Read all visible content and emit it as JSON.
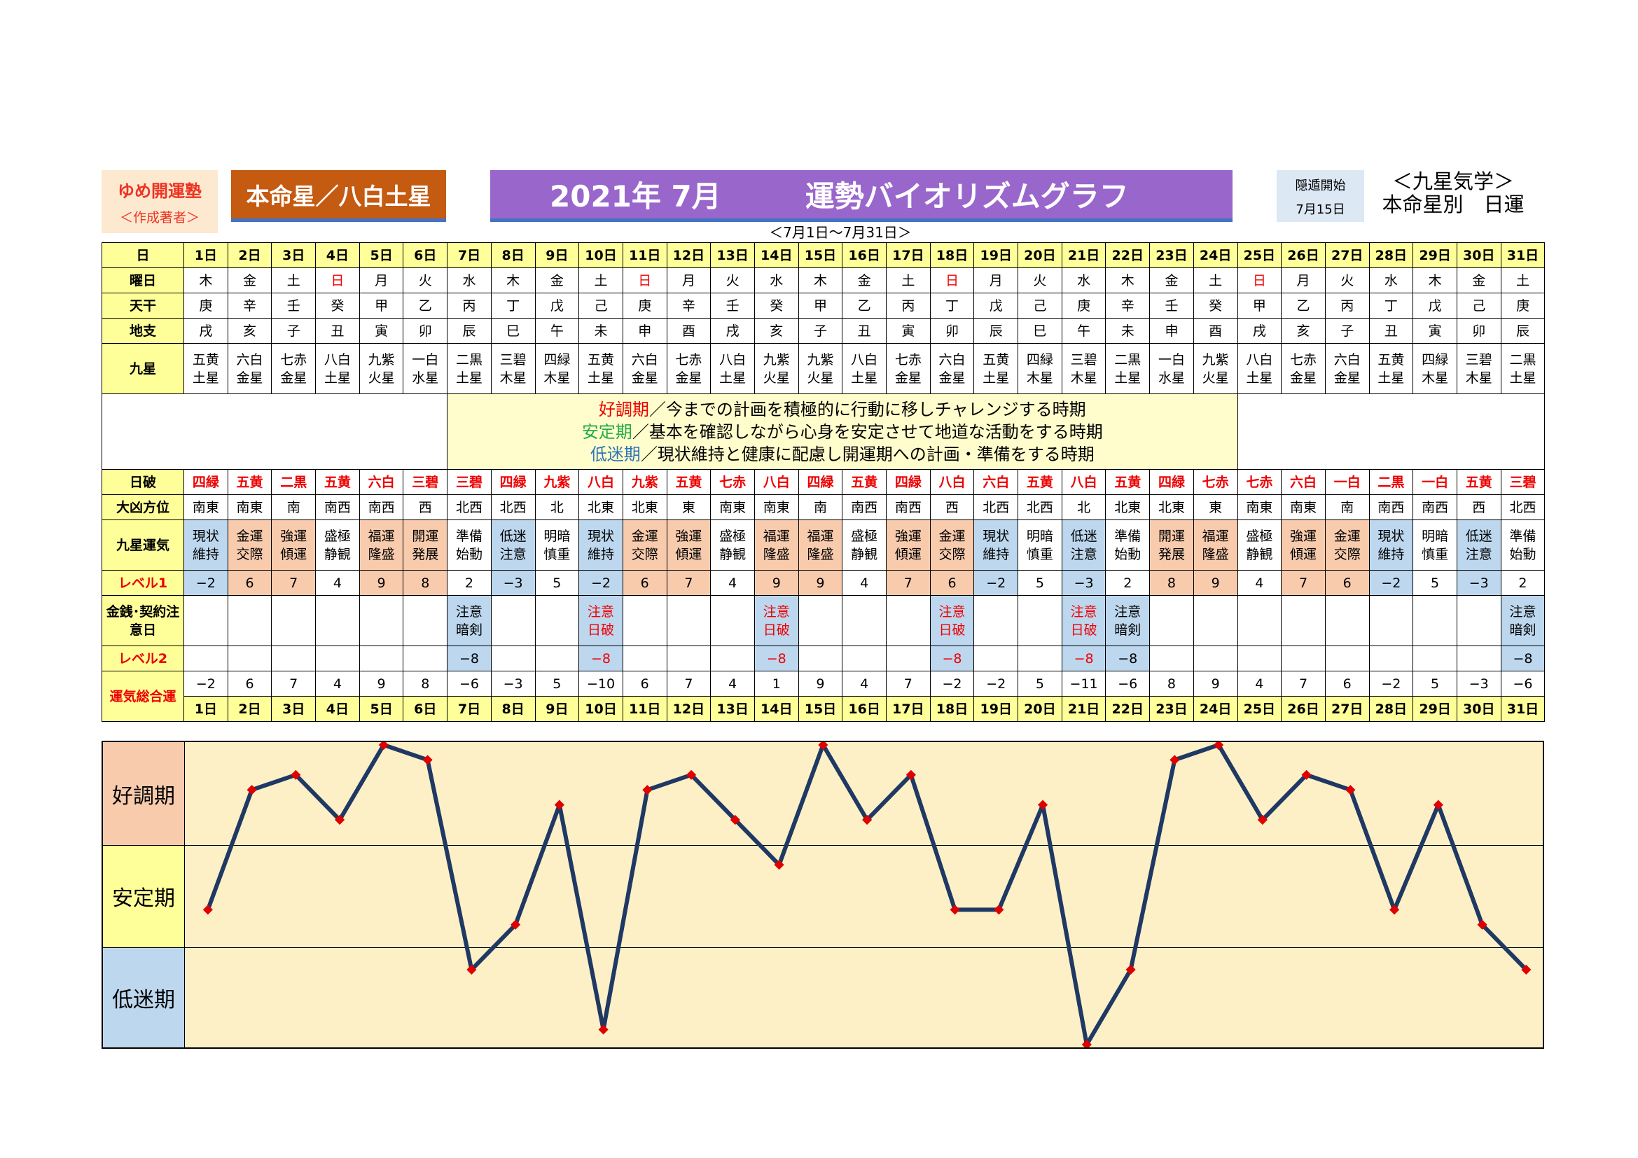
{
  "header": {
    "school": "ゆめ開運塾",
    "author": "＜作成著者＞",
    "honmei": "本命星／八白土星",
    "year_month": "2021年 7月",
    "graph_title": "運勢バイオリズムグラフ",
    "range": "＜7月1日～7月31日＞",
    "hidden_label": "隠遁開始",
    "hidden_date": "7月15日",
    "kyusei_title": "＜九星気学＞",
    "kyusei_sub": "本命星別　日運"
  },
  "row_labels": {
    "day": "日",
    "weekday": "曜日",
    "tenkan": "天干",
    "chishi": "地支",
    "kyusei": "九星",
    "nippa": "日破",
    "daikyo": "大凶方位",
    "unki": "九星運気",
    "level1": "レベル1",
    "kinsen": "金銭･契約注意日",
    "level2": "レベル2",
    "sogo": "運気総合運"
  },
  "legend": [
    {
      "head": "好調期",
      "text": "／今までの計画を積極的に行動に移しチャレンジする時期"
    },
    {
      "head": "安定期",
      "text": "／基本を確認しながら心身を安定させて地道な活動をする時期"
    },
    {
      "head": "低迷期",
      "text": "／現状維持と健康に配慮し開運期への計画・準備をする時期"
    }
  ],
  "days": [
    "1日",
    "2日",
    "3日",
    "4日",
    "5日",
    "6日",
    "7日",
    "8日",
    "9日",
    "10日",
    "11日",
    "12日",
    "13日",
    "14日",
    "15日",
    "16日",
    "17日",
    "18日",
    "19日",
    "20日",
    "21日",
    "22日",
    "23日",
    "24日",
    "25日",
    "26日",
    "27日",
    "28日",
    "29日",
    "30日",
    "31日"
  ],
  "weekdays": [
    "木",
    "金",
    "土",
    "日",
    "月",
    "火",
    "水",
    "木",
    "金",
    "土",
    "日",
    "月",
    "火",
    "水",
    "木",
    "金",
    "土",
    "日",
    "月",
    "火",
    "水",
    "木",
    "金",
    "土",
    "日",
    "月",
    "火",
    "水",
    "木",
    "金",
    "土"
  ],
  "tenkan": [
    "庚",
    "辛",
    "壬",
    "癸",
    "甲",
    "乙",
    "丙",
    "丁",
    "戊",
    "己",
    "庚",
    "辛",
    "壬",
    "癸",
    "甲",
    "乙",
    "丙",
    "丁",
    "戊",
    "己",
    "庚",
    "辛",
    "壬",
    "癸",
    "甲",
    "乙",
    "丙",
    "丁",
    "戊",
    "己",
    "庚"
  ],
  "chishi": [
    "戌",
    "亥",
    "子",
    "丑",
    "寅",
    "卯",
    "辰",
    "巳",
    "午",
    "未",
    "申",
    "酉",
    "戌",
    "亥",
    "子",
    "丑",
    "寅",
    "卯",
    "辰",
    "巳",
    "午",
    "未",
    "申",
    "酉",
    "戌",
    "亥",
    "子",
    "丑",
    "寅",
    "卯",
    "辰"
  ],
  "kyusei": [
    [
      "五黄",
      "土星"
    ],
    [
      "六白",
      "金星"
    ],
    [
      "七赤",
      "金星"
    ],
    [
      "八白",
      "土星"
    ],
    [
      "九紫",
      "火星"
    ],
    [
      "一白",
      "水星"
    ],
    [
      "二黒",
      "土星"
    ],
    [
      "三碧",
      "木星"
    ],
    [
      "四緑",
      "木星"
    ],
    [
      "五黄",
      "土星"
    ],
    [
      "六白",
      "金星"
    ],
    [
      "七赤",
      "金星"
    ],
    [
      "八白",
      "土星"
    ],
    [
      "九紫",
      "火星"
    ],
    [
      "九紫",
      "火星"
    ],
    [
      "八白",
      "土星"
    ],
    [
      "七赤",
      "金星"
    ],
    [
      "六白",
      "金星"
    ],
    [
      "五黄",
      "土星"
    ],
    [
      "四緑",
      "木星"
    ],
    [
      "三碧",
      "木星"
    ],
    [
      "二黒",
      "土星"
    ],
    [
      "一白",
      "水星"
    ],
    [
      "九紫",
      "火星"
    ],
    [
      "八白",
      "土星"
    ],
    [
      "七赤",
      "金星"
    ],
    [
      "六白",
      "金星"
    ],
    [
      "五黄",
      "土星"
    ],
    [
      "四緑",
      "木星"
    ],
    [
      "三碧",
      "木星"
    ],
    [
      "二黒",
      "土星"
    ]
  ],
  "nippa": [
    "四緑",
    "五黄",
    "二黒",
    "五黄",
    "六白",
    "三碧",
    "三碧",
    "四緑",
    "九紫",
    "八白",
    "九紫",
    "五黄",
    "七赤",
    "八白",
    "四緑",
    "五黄",
    "四緑",
    "八白",
    "六白",
    "五黄",
    "八白",
    "五黄",
    "四緑",
    "七赤",
    "七赤",
    "六白",
    "一白",
    "二黒",
    "一白",
    "五黄",
    "三碧"
  ],
  "daikyo": [
    "南東",
    "南東",
    "南",
    "南西",
    "南西",
    "西",
    "北西",
    "北西",
    "北",
    "北東",
    "北東",
    "東",
    "南東",
    "南東",
    "南",
    "南西",
    "南西",
    "西",
    "北西",
    "北西",
    "北",
    "北東",
    "北東",
    "東",
    "南東",
    "南東",
    "南",
    "南西",
    "南西",
    "西",
    "北西"
  ],
  "unki": [
    [
      "現状",
      "維持"
    ],
    [
      "金運",
      "交際"
    ],
    [
      "強運",
      "傾運"
    ],
    [
      "盛極",
      "静観"
    ],
    [
      "福運",
      "隆盛"
    ],
    [
      "開運",
      "発展"
    ],
    [
      "準備",
      "始動"
    ],
    [
      "低迷",
      "注意"
    ],
    [
      "明暗",
      "慎重"
    ],
    [
      "現状",
      "維持"
    ],
    [
      "金運",
      "交際"
    ],
    [
      "強運",
      "傾運"
    ],
    [
      "盛極",
      "静観"
    ],
    [
      "福運",
      "隆盛"
    ],
    [
      "福運",
      "隆盛"
    ],
    [
      "盛極",
      "静観"
    ],
    [
      "強運",
      "傾運"
    ],
    [
      "金運",
      "交際"
    ],
    [
      "現状",
      "維持"
    ],
    [
      "明暗",
      "慎重"
    ],
    [
      "低迷",
      "注意"
    ],
    [
      "準備",
      "始動"
    ],
    [
      "開運",
      "発展"
    ],
    [
      "福運",
      "隆盛"
    ],
    [
      "盛極",
      "静観"
    ],
    [
      "強運",
      "傾運"
    ],
    [
      "金運",
      "交際"
    ],
    [
      "現状",
      "維持"
    ],
    [
      "明暗",
      "慎重"
    ],
    [
      "低迷",
      "注意"
    ],
    [
      "準備",
      "始動"
    ]
  ],
  "level1": [
    "−2",
    "6",
    "7",
    "4",
    "9",
    "8",
    "2",
    "−3",
    "5",
    "−2",
    "6",
    "7",
    "4",
    "9",
    "9",
    "4",
    "7",
    "6",
    "−2",
    "5",
    "−3",
    "2",
    "8",
    "9",
    "4",
    "7",
    "6",
    "−2",
    "5",
    "−3",
    "2"
  ],
  "kinsen": [
    [
      "",
      ""
    ],
    [
      "",
      ""
    ],
    [
      "",
      ""
    ],
    [
      "",
      ""
    ],
    [
      "",
      ""
    ],
    [
      "",
      ""
    ],
    [
      "注意",
      "暗剣"
    ],
    [
      "",
      ""
    ],
    [
      "",
      ""
    ],
    [
      "注意",
      "日破"
    ],
    [
      "",
      ""
    ],
    [
      "",
      ""
    ],
    [
      "",
      ""
    ],
    [
      "注意",
      "日破"
    ],
    [
      "",
      ""
    ],
    [
      "",
      ""
    ],
    [
      "",
      ""
    ],
    [
      "注意",
      "日破"
    ],
    [
      "",
      ""
    ],
    [
      "",
      ""
    ],
    [
      "注意",
      "日破"
    ],
    [
      "注意",
      "暗剣"
    ],
    [
      "",
      ""
    ],
    [
      "",
      ""
    ],
    [
      "",
      ""
    ],
    [
      "",
      ""
    ],
    [
      "",
      ""
    ],
    [
      "",
      ""
    ],
    [
      "",
      ""
    ],
    [
      "",
      ""
    ],
    [
      "注意",
      "暗剣"
    ]
  ],
  "level2": [
    "",
    "",
    "",
    "",
    "",
    "",
    "−8",
    "",
    "",
    "−8",
    "",
    "",
    "",
    "−8",
    "",
    "",
    "",
    "−8",
    "",
    "",
    "−8",
    "−8",
    "",
    "",
    "",
    "",
    "",
    "",
    "",
    "",
    "−8"
  ],
  "sogo": [
    "−2",
    "6",
    "7",
    "4",
    "9",
    "8",
    "−6",
    "−3",
    "5",
    "−10",
    "6",
    "7",
    "4",
    "1",
    "9",
    "4",
    "7",
    "−2",
    "−2",
    "5",
    "−11",
    "−6",
    "8",
    "9",
    "4",
    "7",
    "6",
    "−2",
    "5",
    "−3",
    "−6"
  ],
  "bands": [
    "好調期",
    "安定期",
    "低迷期"
  ],
  "chart_data": {
    "type": "line",
    "x": [
      1,
      2,
      3,
      4,
      5,
      6,
      7,
      8,
      9,
      10,
      11,
      12,
      13,
      14,
      15,
      16,
      17,
      18,
      19,
      20,
      21,
      22,
      23,
      24,
      25,
      26,
      27,
      28,
      29,
      30,
      31
    ],
    "y": [
      -2,
      6,
      7,
      4,
      9,
      8,
      -6,
      -3,
      5,
      -10,
      6,
      7,
      4,
      1,
      9,
      4,
      7,
      -2,
      -2,
      5,
      -11,
      -6,
      8,
      9,
      4,
      7,
      6,
      -2,
      5,
      -3,
      -6
    ],
    "ylim": [
      -11,
      9
    ],
    "line_color": "#1f3864",
    "marker_color": "#e00000",
    "bands": [
      "好調期",
      "安定期",
      "低迷期"
    ],
    "band_colors": [
      "#f8cbad",
      "#ffff99",
      "#bdd7ee"
    ]
  }
}
